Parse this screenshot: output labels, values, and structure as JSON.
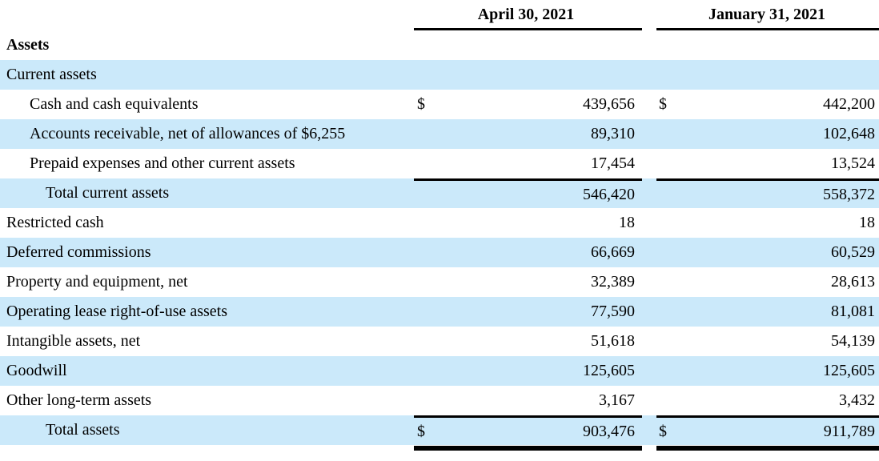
{
  "table": {
    "columns": [
      {
        "label": "April 30, 2021"
      },
      {
        "label": "January 31, 2021"
      }
    ],
    "colors": {
      "stripe_blue": "#cbe9fa",
      "rule_black": "#000000",
      "text": "#000000"
    },
    "rows": [
      {
        "label": "Assets",
        "indent": 0,
        "bold": true,
        "shaded": false,
        "dollar": false,
        "april": "",
        "january": "",
        "rule_above": false
      },
      {
        "label": "Current assets",
        "indent": 0,
        "bold": false,
        "shaded": true,
        "dollar": false,
        "april": "",
        "january": "",
        "rule_above": false
      },
      {
        "label": "Cash and cash equivalents",
        "indent": 1,
        "bold": false,
        "shaded": false,
        "dollar": true,
        "april": "439,656",
        "january": "442,200",
        "rule_above": false
      },
      {
        "label": "Accounts receivable, net of allowances of $6,255",
        "indent": 1,
        "bold": false,
        "shaded": true,
        "dollar": false,
        "april": "89,310",
        "january": "102,648",
        "rule_above": false
      },
      {
        "label": "Prepaid expenses and other current assets",
        "indent": 1,
        "bold": false,
        "shaded": false,
        "dollar": false,
        "april": "17,454",
        "january": "13,524",
        "rule_above": false
      },
      {
        "label": "Total current assets",
        "indent": 2,
        "bold": false,
        "shaded": true,
        "dollar": false,
        "april": "546,420",
        "january": "558,372",
        "rule_above": true
      },
      {
        "label": "Restricted cash",
        "indent": 0,
        "bold": false,
        "shaded": false,
        "dollar": false,
        "april": "18",
        "january": "18",
        "rule_above": false
      },
      {
        "label": "Deferred commissions",
        "indent": 0,
        "bold": false,
        "shaded": true,
        "dollar": false,
        "april": "66,669",
        "january": "60,529",
        "rule_above": false
      },
      {
        "label": "Property and equipment, net",
        "indent": 0,
        "bold": false,
        "shaded": false,
        "dollar": false,
        "april": "32,389",
        "january": "28,613",
        "rule_above": false
      },
      {
        "label": "Operating lease right-of-use assets",
        "indent": 0,
        "bold": false,
        "shaded": true,
        "dollar": false,
        "april": "77,590",
        "january": "81,081",
        "rule_above": false
      },
      {
        "label": "Intangible assets, net",
        "indent": 0,
        "bold": false,
        "shaded": false,
        "dollar": false,
        "april": "51,618",
        "january": "54,139",
        "rule_above": false
      },
      {
        "label": "Goodwill",
        "indent": 0,
        "bold": false,
        "shaded": true,
        "dollar": false,
        "april": "125,605",
        "january": "125,605",
        "rule_above": false
      },
      {
        "label": "Other long-term assets",
        "indent": 0,
        "bold": false,
        "shaded": false,
        "dollar": false,
        "april": "3,167",
        "january": "3,432",
        "rule_above": false
      },
      {
        "label": "Total assets",
        "indent": 2,
        "bold": false,
        "shaded": true,
        "dollar": true,
        "april": "903,476",
        "january": "911,789",
        "rule_above": true
      }
    ],
    "dollar_sign": "$"
  }
}
